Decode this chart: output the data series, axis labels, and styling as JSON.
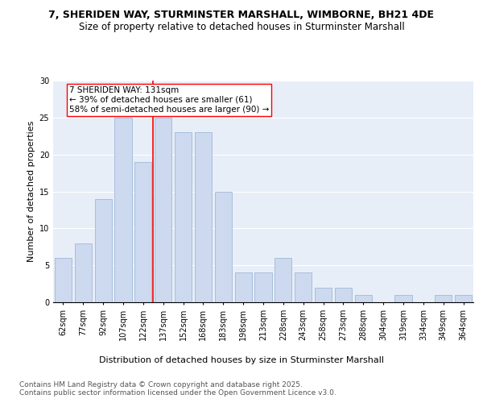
{
  "title_line1": "7, SHERIDEN WAY, STURMINSTER MARSHALL, WIMBORNE, BH21 4DE",
  "title_line2": "Size of property relative to detached houses in Sturminster Marshall",
  "xlabel": "Distribution of detached houses by size in Sturminster Marshall",
  "ylabel": "Number of detached properties",
  "bar_labels": [
    "62sqm",
    "77sqm",
    "92sqm",
    "107sqm",
    "122sqm",
    "137sqm",
    "152sqm",
    "168sqm",
    "183sqm",
    "198sqm",
    "213sqm",
    "228sqm",
    "243sqm",
    "258sqm",
    "273sqm",
    "288sqm",
    "304sqm",
    "319sqm",
    "334sqm",
    "349sqm",
    "364sqm"
  ],
  "bar_values": [
    6,
    8,
    14,
    25,
    19,
    25,
    23,
    23,
    15,
    4,
    4,
    6,
    4,
    2,
    2,
    1,
    0,
    1,
    0,
    1,
    1
  ],
  "bar_color": "#ccd9ee",
  "bar_edge_color": "#a0b8d8",
  "red_line_x": 4.5,
  "annotation_text": "7 SHERIDEN WAY: 131sqm\n← 39% of detached houses are smaller (61)\n58% of semi-detached houses are larger (90) →",
  "annotation_box_color": "white",
  "annotation_box_edge_color": "red",
  "ylim": [
    0,
    30
  ],
  "yticks": [
    0,
    5,
    10,
    15,
    20,
    25,
    30
  ],
  "background_color": "#e8eef8",
  "grid_color": "white",
  "footer_text": "Contains HM Land Registry data © Crown copyright and database right 2025.\nContains public sector information licensed under the Open Government Licence v3.0.",
  "title_fontsize": 9,
  "subtitle_fontsize": 8.5,
  "axis_label_fontsize": 8,
  "tick_fontsize": 7,
  "annotation_fontsize": 7.5,
  "footer_fontsize": 6.5
}
